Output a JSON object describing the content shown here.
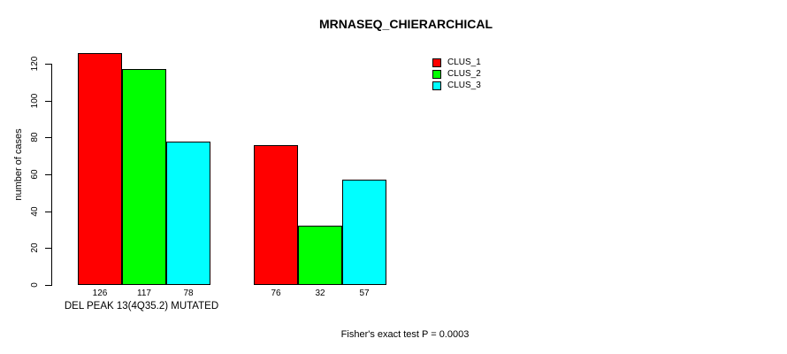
{
  "title": "MRNASEQ_CHIERARCHICAL",
  "footer": "Fisher's exact test P = 0.0003",
  "y_axis": {
    "label": "number of cases",
    "ticks": [
      0,
      20,
      40,
      60,
      80,
      100,
      120
    ]
  },
  "x_axis": {
    "group_label": "DEL PEAK 13(4Q35.2) MUTATED"
  },
  "legend": {
    "items": [
      {
        "label": "CLUS_1",
        "color": "#FF0000"
      },
      {
        "label": "CLUS_2",
        "color": "#00FF00"
      },
      {
        "label": "CLUS_3",
        "color": "#00FFFF"
      }
    ]
  },
  "chart_data": {
    "type": "bar",
    "title": "MRNASEQ_CHIERARCHICAL",
    "xlabel": "DEL PEAK 13(4Q35.2) MUTATED",
    "ylabel": "number of cases",
    "ylim": [
      0,
      130
    ],
    "yticks": [
      0,
      20,
      40,
      60,
      80,
      100,
      120
    ],
    "grid": false,
    "legend_position": "top-right",
    "bar_borders": "#000000",
    "categories": [
      "DEL PEAK 13(4Q35.2) MUTATED",
      ""
    ],
    "series": [
      {
        "name": "CLUS_1",
        "color": "#FF0000",
        "values": [
          126,
          76
        ]
      },
      {
        "name": "CLUS_2",
        "color": "#00FF00",
        "values": [
          117,
          32
        ]
      },
      {
        "name": "CLUS_3",
        "color": "#00FFFF",
        "values": [
          78,
          57
        ]
      }
    ],
    "bar_value_labels": [
      [
        126,
        117,
        78
      ],
      [
        76,
        32,
        57
      ]
    ],
    "annotation": "Fisher's exact test P = 0.0003"
  }
}
